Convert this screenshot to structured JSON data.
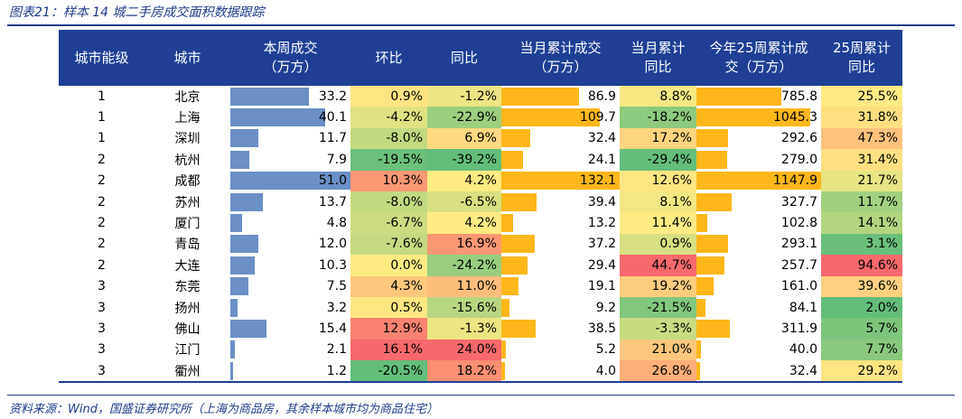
{
  "title": "图表21：样本 14 城二手房成交面积数据跟踪",
  "source": "资料来源：Wind，国盛证券研究所（上海为商品房，其余样本城市均为商品住宅）",
  "headers": {
    "tier": "城市能级",
    "city": "城市",
    "weekly": "本周成交\n（万方）",
    "mom": "环比",
    "yoy": "同比",
    "month_cum": "当月累计成交\n（万方）",
    "month_yoy": "当月累计\n同比",
    "year_cum": "今年25周累计成\n交（万方）",
    "year_yoy": "25周累计\n同比"
  },
  "rows": [
    {
      "tier": "1",
      "city": "北京",
      "weekly": "33.2",
      "mom": "0.9%",
      "yoy": "-1.2%",
      "month_cum": "86.9",
      "month_yoy": "8.8%",
      "year_cum": "785.8",
      "year_yoy": "25.5%"
    },
    {
      "tier": "1",
      "city": "上海",
      "weekly": "40.1",
      "mom": "-4.2%",
      "yoy": "-22.9%",
      "month_cum": "109.7",
      "month_yoy": "-18.2%",
      "year_cum": "1045.3",
      "year_yoy": "31.8%"
    },
    {
      "tier": "1",
      "city": "深圳",
      "weekly": "11.7",
      "mom": "-8.0%",
      "yoy": "6.9%",
      "month_cum": "32.4",
      "month_yoy": "17.2%",
      "year_cum": "292.6",
      "year_yoy": "47.3%"
    },
    {
      "tier": "2",
      "city": "杭州",
      "weekly": "7.9",
      "mom": "-19.5%",
      "yoy": "-39.2%",
      "month_cum": "24.1",
      "month_yoy": "-29.4%",
      "year_cum": "279.0",
      "year_yoy": "31.4%"
    },
    {
      "tier": "2",
      "city": "成都",
      "weekly": "51.0",
      "mom": "10.3%",
      "yoy": "4.2%",
      "month_cum": "132.1",
      "month_yoy": "12.6%",
      "year_cum": "1147.9",
      "year_yoy": "21.7%"
    },
    {
      "tier": "2",
      "city": "苏州",
      "weekly": "13.7",
      "mom": "-8.0%",
      "yoy": "-6.5%",
      "month_cum": "39.4",
      "month_yoy": "8.1%",
      "year_cum": "327.7",
      "year_yoy": "11.7%"
    },
    {
      "tier": "2",
      "city": "厦门",
      "weekly": "4.8",
      "mom": "-6.7%",
      "yoy": "4.2%",
      "month_cum": "13.2",
      "month_yoy": "11.4%",
      "year_cum": "102.8",
      "year_yoy": "14.1%"
    },
    {
      "tier": "2",
      "city": "青岛",
      "weekly": "12.0",
      "mom": "-7.6%",
      "yoy": "16.9%",
      "month_cum": "37.2",
      "month_yoy": "0.9%",
      "year_cum": "293.1",
      "year_yoy": "3.1%"
    },
    {
      "tier": "2",
      "city": "大连",
      "weekly": "10.3",
      "mom": "0.0%",
      "yoy": "-24.2%",
      "month_cum": "29.4",
      "month_yoy": "44.7%",
      "year_cum": "257.7",
      "year_yoy": "94.6%"
    },
    {
      "tier": "3",
      "city": "东莞",
      "weekly": "7.5",
      "mom": "4.3%",
      "yoy": "11.0%",
      "month_cum": "19.1",
      "month_yoy": "19.2%",
      "year_cum": "161.0",
      "year_yoy": "39.6%"
    },
    {
      "tier": "3",
      "city": "扬州",
      "weekly": "3.2",
      "mom": "0.5%",
      "yoy": "-15.6%",
      "month_cum": "9.2",
      "month_yoy": "-21.5%",
      "year_cum": "84.1",
      "year_yoy": "2.0%"
    },
    {
      "tier": "3",
      "city": "佛山",
      "weekly": "15.4",
      "mom": "12.9%",
      "yoy": "-1.3%",
      "month_cum": "38.5",
      "month_yoy": "-3.3%",
      "year_cum": "311.9",
      "year_yoy": "5.7%"
    },
    {
      "tier": "3",
      "city": "江门",
      "weekly": "2.1",
      "mom": "16.1%",
      "yoy": "24.0%",
      "month_cum": "5.2",
      "month_yoy": "21.0%",
      "year_cum": "40.0",
      "year_yoy": "7.7%"
    },
    {
      "tier": "3",
      "city": "衢州",
      "weekly": "1.2",
      "mom": "-20.5%",
      "yoy": "18.2%",
      "month_cum": "4.0",
      "month_yoy": "26.8%",
      "year_cum": "32.4",
      "year_yoy": "29.2%"
    }
  ],
  "colors": {
    "header_bg": "#1f3f94",
    "weekly_bar": "#6b8fc6",
    "cum_bar": "#ffb71b",
    "scale_low": "#63be7b",
    "scale_mid": "#ffeb84",
    "scale_high": "#f8696b"
  }
}
